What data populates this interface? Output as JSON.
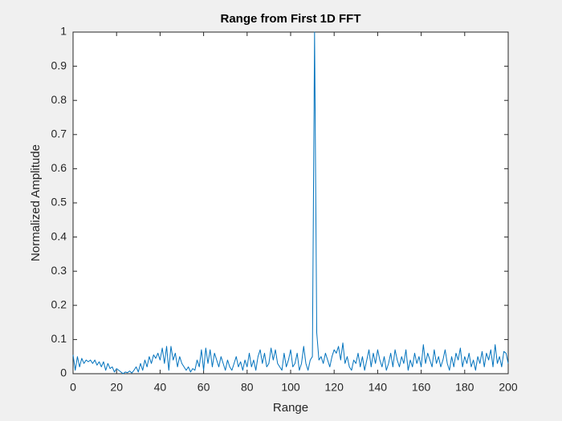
{
  "chart_data": {
    "type": "line",
    "title": "Range from First 1D FFT",
    "x_label": "Range",
    "y_label": "Normalized Amplitude",
    "x": [
      0,
      1,
      2,
      3,
      4,
      5,
      6,
      7,
      8,
      9,
      10,
      11,
      12,
      13,
      14,
      15,
      16,
      17,
      18,
      19,
      20,
      21,
      22,
      23,
      24,
      25,
      26,
      27,
      28,
      29,
      30,
      31,
      32,
      33,
      34,
      35,
      36,
      37,
      38,
      39,
      40,
      41,
      42,
      43,
      44,
      45,
      46,
      47,
      48,
      49,
      50,
      51,
      52,
      53,
      54,
      55,
      56,
      57,
      58,
      59,
      60,
      61,
      62,
      63,
      64,
      65,
      66,
      67,
      68,
      69,
      70,
      71,
      72,
      73,
      74,
      75,
      76,
      77,
      78,
      79,
      80,
      81,
      82,
      83,
      84,
      85,
      86,
      87,
      88,
      89,
      90,
      91,
      92,
      93,
      94,
      95,
      96,
      97,
      98,
      99,
      100,
      101,
      102,
      103,
      104,
      105,
      106,
      107,
      108,
      109,
      110,
      111,
      112,
      113,
      114,
      115,
      116,
      117,
      118,
      119,
      120,
      121,
      122,
      123,
      124,
      125,
      126,
      127,
      128,
      129,
      130,
      131,
      132,
      133,
      134,
      135,
      136,
      137,
      138,
      139,
      140,
      141,
      142,
      143,
      144,
      145,
      146,
      147,
      148,
      149,
      150,
      151,
      152,
      153,
      154,
      155,
      156,
      157,
      158,
      159,
      160,
      161,
      162,
      163,
      164,
      165,
      166,
      167,
      168,
      169,
      170,
      171,
      172,
      173,
      174,
      175,
      176,
      177,
      178,
      179,
      180,
      181,
      182,
      183,
      184,
      185,
      186,
      187,
      188,
      189,
      190,
      191,
      192,
      193,
      194,
      195,
      196,
      197,
      198,
      199,
      200
    ],
    "series": [
      {
        "color": "#0072bd",
        "values": [
          0.055,
          0.01,
          0.05,
          0.02,
          0.045,
          0.03,
          0.04,
          0.035,
          0.04,
          0.03,
          0.04,
          0.025,
          0.035,
          0.02,
          0.035,
          0.01,
          0.03,
          0.015,
          0.02,
          0.005,
          0.015,
          0.01,
          0.005,
          0.0,
          0.005,
          0.003,
          0.008,
          0.002,
          0.01,
          0.02,
          0.005,
          0.03,
          0.01,
          0.04,
          0.02,
          0.05,
          0.03,
          0.055,
          0.045,
          0.06,
          0.04,
          0.075,
          0.03,
          0.08,
          0.01,
          0.08,
          0.04,
          0.06,
          0.02,
          0.05,
          0.03,
          0.02,
          0.01,
          0.02,
          0.005,
          0.015,
          0.01,
          0.04,
          0.02,
          0.07,
          0.01,
          0.075,
          0.03,
          0.07,
          0.02,
          0.06,
          0.04,
          0.02,
          0.05,
          0.03,
          0.01,
          0.04,
          0.02,
          0.01,
          0.03,
          0.05,
          0.02,
          0.035,
          0.01,
          0.04,
          0.02,
          0.06,
          0.02,
          0.04,
          0.01,
          0.05,
          0.07,
          0.03,
          0.06,
          0.02,
          0.03,
          0.075,
          0.04,
          0.07,
          0.03,
          0.02,
          0.01,
          0.06,
          0.02,
          0.04,
          0.07,
          0.02,
          0.03,
          0.06,
          0.01,
          0.03,
          0.08,
          0.03,
          0.01,
          0.04,
          0.05,
          1.0,
          0.12,
          0.04,
          0.05,
          0.03,
          0.06,
          0.04,
          0.02,
          0.05,
          0.07,
          0.06,
          0.08,
          0.04,
          0.09,
          0.03,
          0.05,
          0.02,
          0.01,
          0.04,
          0.03,
          0.06,
          0.02,
          0.05,
          0.01,
          0.04,
          0.07,
          0.02,
          0.06,
          0.03,
          0.07,
          0.04,
          0.02,
          0.05,
          0.01,
          0.03,
          0.06,
          0.02,
          0.07,
          0.04,
          0.02,
          0.05,
          0.03,
          0.07,
          0.01,
          0.04,
          0.02,
          0.06,
          0.03,
          0.05,
          0.02,
          0.085,
          0.03,
          0.06,
          0.04,
          0.02,
          0.07,
          0.03,
          0.05,
          0.02,
          0.04,
          0.07,
          0.03,
          0.01,
          0.05,
          0.02,
          0.06,
          0.04,
          0.075,
          0.02,
          0.05,
          0.03,
          0.06,
          0.02,
          0.04,
          0.01,
          0.05,
          0.03,
          0.065,
          0.02,
          0.06,
          0.04,
          0.07,
          0.02,
          0.085,
          0.03,
          0.05,
          0.02,
          0.065,
          0.06,
          0.03
        ]
      }
    ],
    "xlim": [
      0,
      200
    ],
    "ylim": [
      0,
      1
    ],
    "xticks": [
      0,
      20,
      40,
      60,
      80,
      100,
      120,
      140,
      160,
      180,
      200
    ],
    "yticks": [
      0,
      0.1,
      0.2,
      0.3,
      0.4,
      0.5,
      0.6,
      0.7,
      0.8,
      0.9,
      1
    ],
    "grid": false
  }
}
